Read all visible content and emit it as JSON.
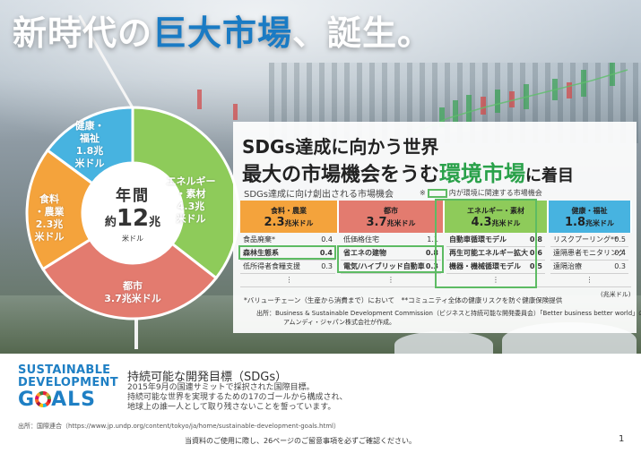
{
  "title": {
    "prefix": "新時代の",
    "accent": "巨大市場",
    "suffix": "、誕生。"
  },
  "donut": {
    "center_label": "年間",
    "center_prefix": "約",
    "center_value": "12",
    "center_unit_suffix": "兆",
    "center_unit": "米ドル",
    "segments": [
      {
        "name": "エネルギー・素材",
        "label_lines": [
          "エネルギー",
          "・素材",
          "4.3兆",
          "米ドル"
        ],
        "value": 4.3,
        "color": "#8ecb5a"
      },
      {
        "name": "都市",
        "label_lines": [
          "都市",
          "3.7兆米ドル"
        ],
        "value": 3.7,
        "color": "#e37b6f"
      },
      {
        "name": "食料・農業",
        "label_lines": [
          "食料",
          "・農業",
          "2.3兆",
          "米ドル"
        ],
        "value": 2.3,
        "color": "#f4a33c"
      },
      {
        "name": "健康・福祉",
        "label_lines": [
          "健康・",
          "福祉",
          "1.8兆",
          "米ドル"
        ],
        "value": 1.8,
        "color": "#47b3e0"
      }
    ]
  },
  "panel": {
    "heading1": "SDGs達成に向かう世界",
    "heading2_prefix": "最大の市場機会をうむ",
    "heading2_accent": "環境市場",
    "heading2_suffix": "に着目",
    "subtitle": "SDGs達成に向け創出される市場機会",
    "legend_prefix": "※",
    "legend_text": "内が環境に関連する市場機会",
    "columns": [
      {
        "name": "食料・農業",
        "value": "2.3",
        "unit": "兆米ドル",
        "rows": [
          {
            "label": "食品廃棄*",
            "value": "0.4",
            "highlight": false
          },
          {
            "label": "森林生態系",
            "value": "0.4",
            "highlight": true
          },
          {
            "label": "低所得者食糧支援",
            "value": "0.3",
            "highlight": false
          }
        ]
      },
      {
        "name": "都市",
        "value": "3.7",
        "unit": "兆米ドル",
        "rows": [
          {
            "label": "低価格住宅",
            "value": "1.1",
            "highlight": false
          },
          {
            "label": "省エネの建物",
            "value": "0.8",
            "highlight": true
          },
          {
            "label": "電気/ハイブリッド自動車",
            "value": "0.3",
            "highlight": true
          }
        ]
      },
      {
        "name": "エネルギー・素材",
        "value": "4.3",
        "unit": "兆米ドル",
        "rows": [
          {
            "label": "自動車循環モデル",
            "value": "0.8",
            "highlight": true
          },
          {
            "label": "再生可能エネルギー拡大",
            "value": "0.6",
            "highlight": true
          },
          {
            "label": "機器・機械循環モデル",
            "value": "0.5",
            "highlight": true
          }
        ]
      },
      {
        "name": "健康・福祉",
        "value": "1.8",
        "unit": "兆米ドル",
        "rows": [
          {
            "label": "リスクプーリング**",
            "value": "0.5",
            "highlight": false
          },
          {
            "label": "遠隔患者モニタリング",
            "value": "0.4",
            "highlight": false
          },
          {
            "label": "遠隔治療",
            "value": "0.3",
            "highlight": false
          }
        ]
      }
    ],
    "ellipsis": "⋮",
    "footnote": "*バリューチェーン（生産から消費まで）において　**コミュニティ全体の健康リスクを防ぐ健康保険提供",
    "unit_note": "(兆米ドル)",
    "source_line1": "出所：Business & Sustainable Development Commission（ビジネスと持続可能な開発委員会）「Better business better world」の情報を基に、",
    "source_line2": "アムンディ・ジャパン株式会社が作成。"
  },
  "sdgs": {
    "logo_line1": "SUSTAINABLE",
    "logo_line2": "DEVELOPMENT",
    "logo_line3_a": "G",
    "logo_line3_b": "ALS",
    "title": "持続可能な開発目標（SDGs）",
    "desc_line1": "2015年9月の国連サミットで採択された国際目標。",
    "desc_line2": "持続可能な世界を実現するための17のゴールから構成され、",
    "desc_line3": "地球上の誰一人として取り残さないことを誓っています。",
    "source": "出所：国際連合（https://www.jp.undp.org/content/tokyo/ja/home/sustainable-development-goals.html）"
  },
  "footer": {
    "disclaimer": "当資料のご使用に際し、26ページのご留意事項を必ずご確認ください。",
    "page_number": "1"
  }
}
